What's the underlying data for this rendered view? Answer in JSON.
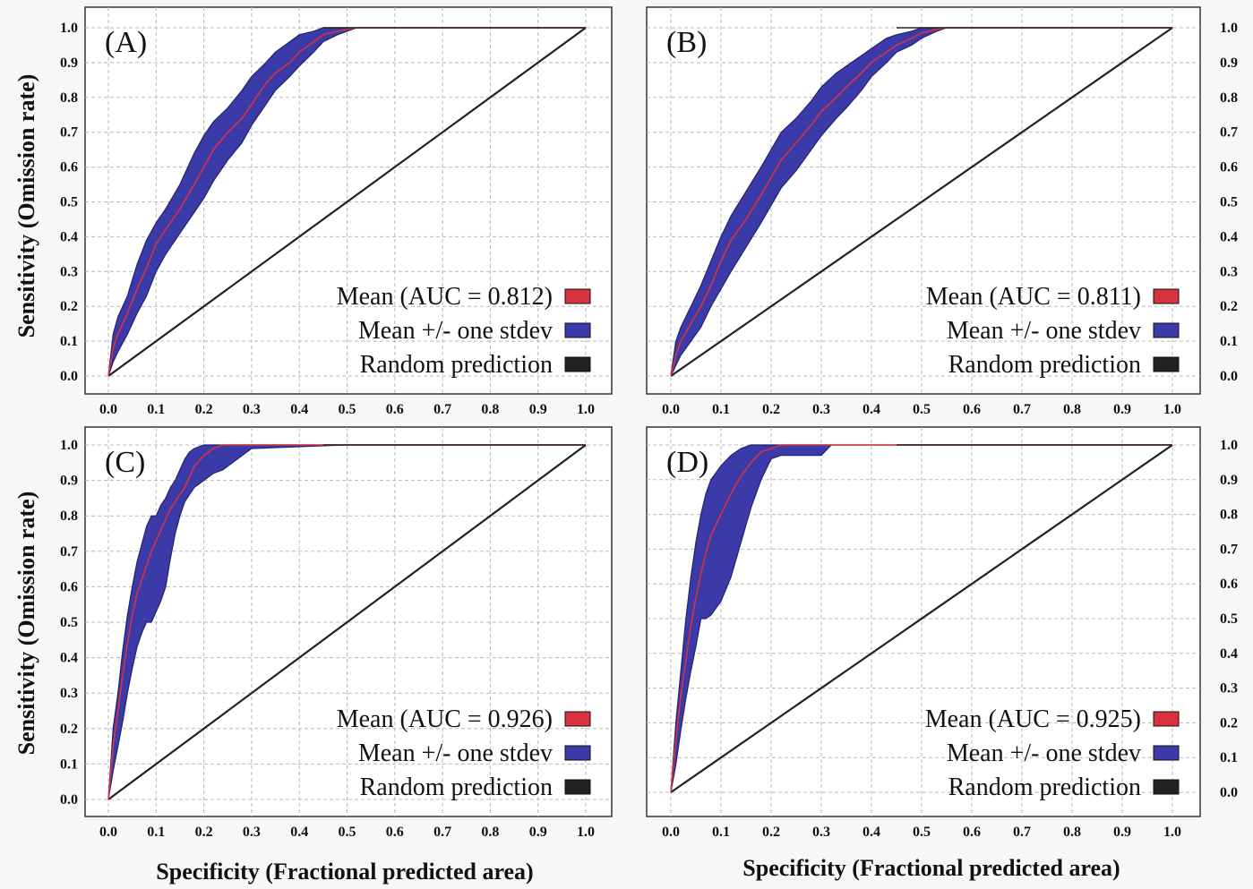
{
  "xlabel": "Specificity (Fractional predicted area)",
  "ylabel": "Sensitivity (Omission rate)",
  "colors": {
    "mean": "#d8323f",
    "band": "#3a3aa8",
    "band_edge": "#23236e",
    "random": "#222222",
    "grid": "#b9b9b9",
    "frame": "#333333"
  },
  "x_ticks": [
    "0.0",
    "0.1",
    "0.2",
    "0.3",
    "0.4",
    "0.5",
    "0.6",
    "0.7",
    "0.8",
    "0.9",
    "1.0"
  ],
  "y_ticks": [
    "0.0",
    "0.1",
    "0.2",
    "0.3",
    "0.4",
    "0.5",
    "0.6",
    "0.7",
    "0.8",
    "0.9",
    "1.0"
  ],
  "chart_data": [
    {
      "type": "area",
      "panel": "(A)",
      "xlim": [
        0,
        1
      ],
      "ylim": [
        0,
        1
      ],
      "grid": true,
      "legend_placement": "bottom-right",
      "legend": [
        "Mean (AUC = 0.812)",
        "Mean +/- one stdev",
        "Random prediction"
      ],
      "series": [
        {
          "x": [
            0,
            0.01,
            0.02,
            0.04,
            0.06,
            0.08,
            0.1,
            0.12,
            0.15,
            0.18,
            0.2,
            0.22,
            0.25,
            0.28,
            0.3,
            0.33,
            0.35,
            0.38,
            0.4,
            0.43,
            0.45,
            0.48,
            0.5,
            0.52,
            0.55,
            0.6,
            0.7,
            0.8,
            0.9,
            1.0
          ],
          "y_mean": [
            0,
            0.08,
            0.12,
            0.18,
            0.25,
            0.31,
            0.38,
            0.42,
            0.48,
            0.55,
            0.6,
            0.65,
            0.7,
            0.74,
            0.78,
            0.84,
            0.87,
            0.9,
            0.93,
            0.96,
            0.98,
            0.99,
            0.995,
            1,
            1,
            1,
            1,
            1,
            1,
            1
          ],
          "y_upper": [
            0,
            0.12,
            0.17,
            0.23,
            0.32,
            0.39,
            0.44,
            0.48,
            0.55,
            0.64,
            0.69,
            0.73,
            0.77,
            0.82,
            0.86,
            0.9,
            0.93,
            0.96,
            0.98,
            0.99,
            1,
            1,
            1,
            1,
            1,
            1,
            1,
            1,
            1,
            1
          ],
          "y_lower": [
            0,
            0.04,
            0.07,
            0.12,
            0.18,
            0.23,
            0.3,
            0.35,
            0.41,
            0.47,
            0.51,
            0.56,
            0.62,
            0.67,
            0.72,
            0.78,
            0.82,
            0.86,
            0.89,
            0.93,
            0.96,
            0.98,
            0.99,
            1,
            1,
            1,
            1,
            1,
            1,
            1
          ]
        }
      ]
    },
    {
      "type": "area",
      "panel": "(B)",
      "xlim": [
        0,
        1
      ],
      "ylim": [
        0,
        1
      ],
      "grid": true,
      "legend_placement": "bottom-right",
      "legend": [
        "Mean (AUC = 0.811)",
        "Mean +/- one stdev",
        "Random prediction"
      ],
      "series": [
        {
          "x": [
            0,
            0.01,
            0.02,
            0.04,
            0.06,
            0.08,
            0.1,
            0.12,
            0.15,
            0.18,
            0.2,
            0.22,
            0.25,
            0.28,
            0.3,
            0.33,
            0.35,
            0.38,
            0.4,
            0.43,
            0.45,
            0.48,
            0.5,
            0.53,
            0.55,
            0.6,
            0.7,
            0.8,
            0.9,
            1.0
          ],
          "y_mean": [
            0,
            0.06,
            0.1,
            0.15,
            0.2,
            0.26,
            0.33,
            0.39,
            0.45,
            0.52,
            0.57,
            0.62,
            0.67,
            0.72,
            0.76,
            0.8,
            0.83,
            0.87,
            0.9,
            0.93,
            0.95,
            0.97,
            0.985,
            0.995,
            1,
            1,
            1,
            1,
            1,
            1
          ],
          "y_upper": [
            0,
            0.1,
            0.14,
            0.2,
            0.26,
            0.33,
            0.4,
            0.46,
            0.53,
            0.6,
            0.65,
            0.7,
            0.74,
            0.79,
            0.83,
            0.87,
            0.89,
            0.92,
            0.94,
            0.97,
            0.98,
            0.99,
            1,
            1,
            1,
            1,
            1,
            1,
            1,
            1
          ],
          "y_lower": [
            0,
            0.03,
            0.06,
            0.1,
            0.14,
            0.2,
            0.25,
            0.3,
            0.37,
            0.44,
            0.49,
            0.54,
            0.59,
            0.65,
            0.69,
            0.74,
            0.77,
            0.82,
            0.86,
            0.9,
            0.93,
            0.95,
            0.97,
            0.99,
            1,
            1,
            1,
            1,
            1,
            1
          ]
        }
      ]
    },
    {
      "type": "area",
      "panel": "(C)",
      "xlim": [
        0,
        1
      ],
      "ylim": [
        0,
        1
      ],
      "grid": true,
      "legend_placement": "bottom-right",
      "legend": [
        "Mean (AUC = 0.926)",
        "Mean +/- one stdev",
        "Random prediction"
      ],
      "series": [
        {
          "x": [
            0,
            0.01,
            0.02,
            0.03,
            0.04,
            0.05,
            0.06,
            0.07,
            0.08,
            0.09,
            0.1,
            0.11,
            0.12,
            0.13,
            0.14,
            0.15,
            0.16,
            0.17,
            0.18,
            0.2,
            0.22,
            0.24,
            0.26,
            0.28,
            0.3,
            0.5,
            0.7,
            1.0
          ],
          "y_mean": [
            0,
            0.15,
            0.25,
            0.35,
            0.44,
            0.52,
            0.58,
            0.62,
            0.66,
            0.7,
            0.73,
            0.76,
            0.79,
            0.82,
            0.84,
            0.86,
            0.88,
            0.91,
            0.94,
            0.97,
            0.99,
            1,
            1,
            1,
            1,
            1,
            1,
            1
          ],
          "y_upper": [
            0,
            0.2,
            0.3,
            0.42,
            0.52,
            0.6,
            0.67,
            0.72,
            0.77,
            0.8,
            0.8,
            0.83,
            0.85,
            0.88,
            0.9,
            0.93,
            0.96,
            0.98,
            0.99,
            1,
            1,
            1,
            1,
            1,
            1,
            1,
            1,
            1
          ],
          "y_lower": [
            0,
            0.08,
            0.15,
            0.22,
            0.3,
            0.37,
            0.43,
            0.47,
            0.5,
            0.5,
            0.53,
            0.56,
            0.6,
            0.68,
            0.75,
            0.8,
            0.84,
            0.86,
            0.88,
            0.9,
            0.92,
            0.93,
            0.95,
            0.97,
            0.99,
            1,
            1,
            1
          ]
        }
      ]
    },
    {
      "type": "area",
      "panel": "(D)",
      "xlim": [
        0,
        1
      ],
      "ylim": [
        0,
        1
      ],
      "grid": true,
      "legend_placement": "bottom-right",
      "legend": [
        "Mean (AUC = 0.925)",
        "Mean +/- one stdev",
        "Random prediction"
      ],
      "series": [
        {
          "x": [
            0,
            0.01,
            0.02,
            0.03,
            0.04,
            0.05,
            0.06,
            0.07,
            0.08,
            0.1,
            0.12,
            0.14,
            0.16,
            0.18,
            0.2,
            0.22,
            0.25,
            0.28,
            0.3,
            0.32,
            0.5,
            0.7,
            1.0
          ],
          "y_mean": [
            0,
            0.15,
            0.28,
            0.38,
            0.48,
            0.56,
            0.63,
            0.69,
            0.74,
            0.8,
            0.86,
            0.91,
            0.95,
            0.98,
            0.99,
            1,
            1,
            1,
            1,
            1,
            1,
            1,
            1
          ],
          "y_upper": [
            0,
            0.2,
            0.35,
            0.5,
            0.62,
            0.72,
            0.8,
            0.86,
            0.9,
            0.94,
            0.97,
            0.99,
            1,
            1,
            1,
            1,
            1,
            1,
            1,
            1,
            1,
            1,
            1
          ],
          "y_lower": [
            0,
            0.08,
            0.18,
            0.27,
            0.35,
            0.42,
            0.5,
            0.5,
            0.51,
            0.55,
            0.62,
            0.72,
            0.82,
            0.9,
            0.96,
            0.97,
            0.97,
            0.97,
            0.97,
            1,
            1,
            1,
            1
          ]
        }
      ]
    }
  ]
}
